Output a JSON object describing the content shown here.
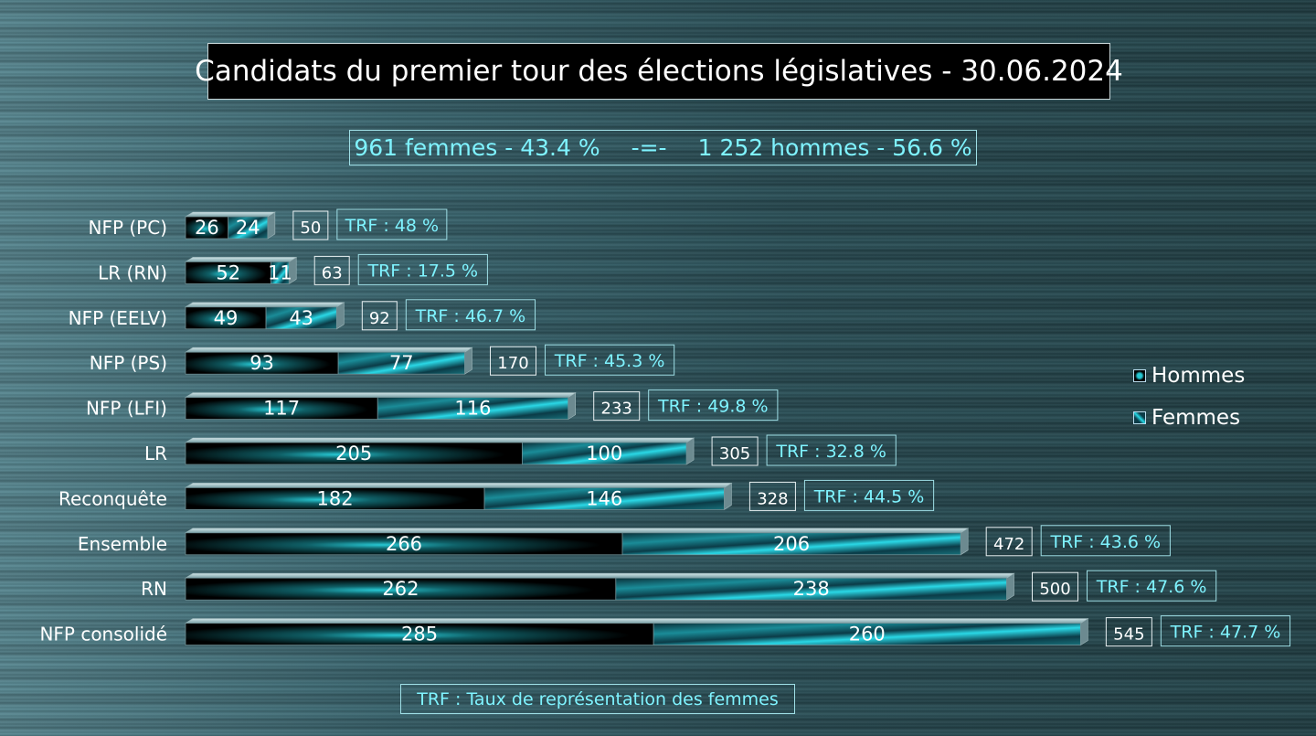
{
  "title": "Candidats du premier tour des élections législatives - 30.06.2024",
  "summary": {
    "femmes": "961 femmes - 43.4 %",
    "separator": "-=-",
    "hommes": "1 252 hommes - 56.6 %"
  },
  "legend": {
    "hommes": "Hommes",
    "femmes": "Femmes"
  },
  "footnote": "TRF : Taux de représentation des femmes",
  "colors": {
    "hommes_bar": "#000000",
    "hommes_glow": "#27c9d4",
    "femmes_bar": "#0b3b47",
    "femmes_glow": "#2ad8e6",
    "trf_text": "#7ff3ff"
  },
  "chart_data": {
    "type": "bar",
    "orientation": "horizontal",
    "stacked": true,
    "categories": [
      "NFP (PC)",
      "LR (RN)",
      "NFP (EELV)",
      "NFP (PS)",
      "NFP (LFI)",
      "LR",
      "Reconquête",
      "Ensemble",
      "RN",
      "NFP consolidé"
    ],
    "series": [
      {
        "name": "Hommes",
        "values": [
          26,
          52,
          49,
          93,
          117,
          205,
          182,
          266,
          262,
          285
        ]
      },
      {
        "name": "Femmes",
        "values": [
          24,
          11,
          43,
          77,
          116,
          100,
          146,
          206,
          238,
          260
        ]
      }
    ],
    "totals": [
      "50",
      "63",
      "92",
      "170",
      "233",
      "305",
      "328",
      "472",
      "500",
      "545"
    ],
    "trf": [
      "TRF : 48 %",
      "TRF : 17.5 %",
      "TRF : 46.7 %",
      "TRF : 45.3 %",
      "TRF : 49.8 %",
      "TRF : 32.8 %",
      "TRF : 44.5 %",
      "TRF : 43.6 %",
      "TRF : 47.6 %",
      "TRF : 47.7 %"
    ],
    "legend_position": "right",
    "grid": false
  }
}
